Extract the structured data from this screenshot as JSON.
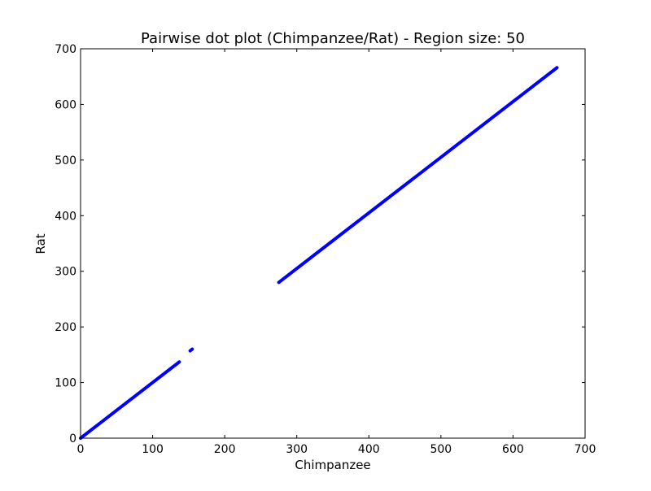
{
  "chart_data": {
    "type": "scatter",
    "title": "Pairwise dot plot (Chimpanzee/Rat) - Region size: 50",
    "xlabel": "Chimpanzee",
    "ylabel": "Rat",
    "xlim": [
      0,
      700
    ],
    "ylim": [
      0,
      700
    ],
    "xticks": [
      "0",
      "100",
      "200",
      "300",
      "400",
      "500",
      "600",
      "700"
    ],
    "yticks": [
      "0",
      "100",
      "200",
      "300",
      "400",
      "500",
      "600",
      "700"
    ],
    "grid": false,
    "legend": "none",
    "series": [
      {
        "color": "#0000ff",
        "segments": [
          {
            "x_start": 0,
            "y_start": 0,
            "x_end": 137,
            "y_end": 137
          },
          {
            "x_start": 152,
            "y_start": 157,
            "x_end": 155,
            "y_end": 160
          },
          {
            "x_start": 275,
            "y_start": 280,
            "x_end": 661,
            "y_end": 666
          }
        ]
      }
    ]
  }
}
